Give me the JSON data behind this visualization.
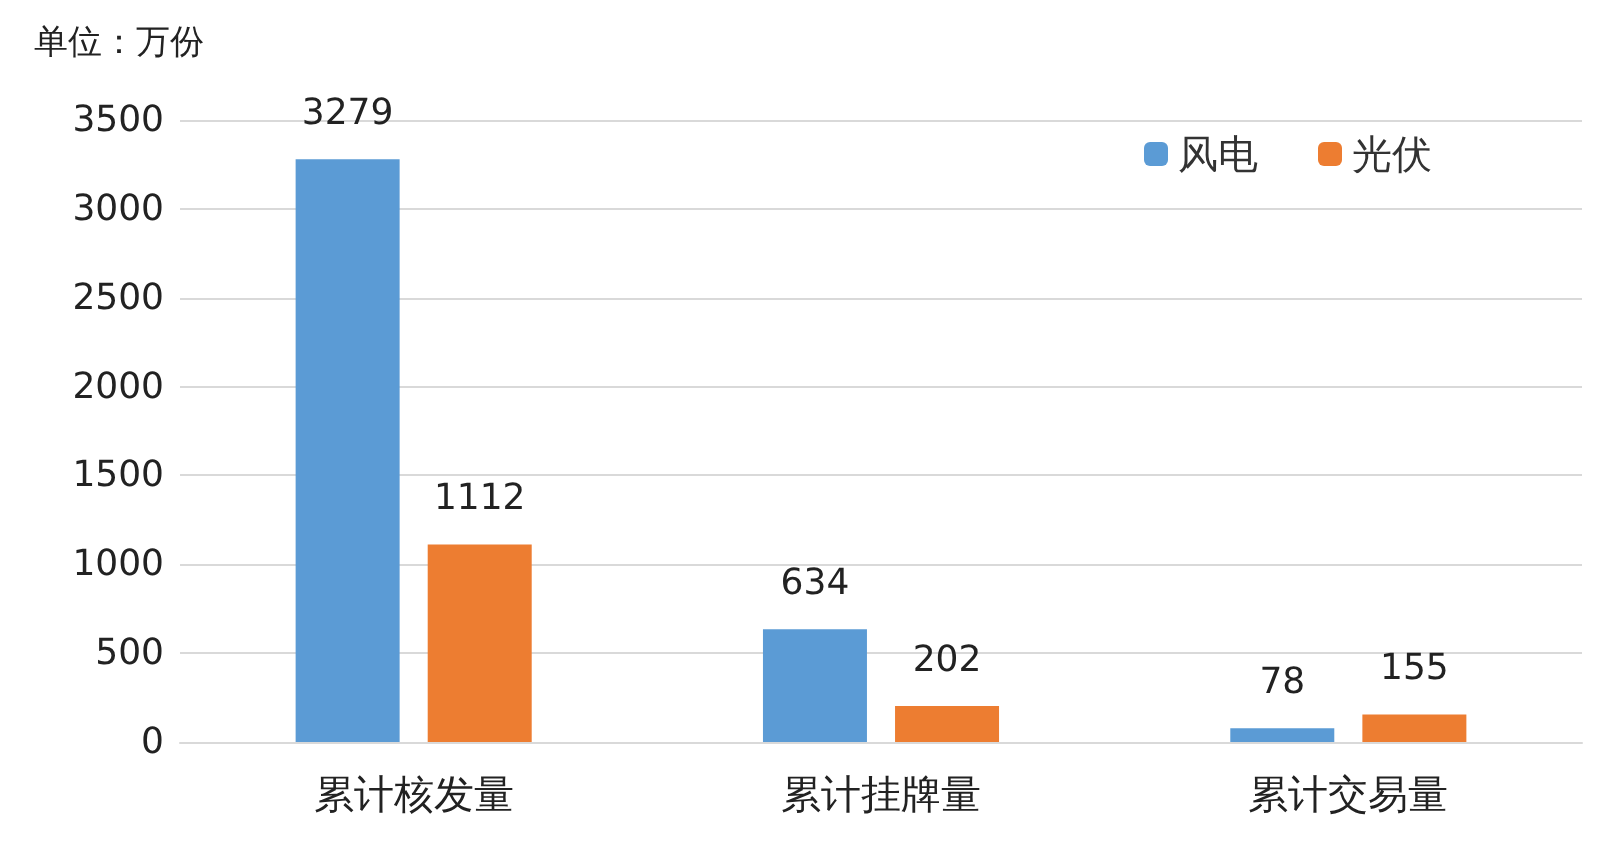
{
  "chart_data": {
    "type": "bar",
    "ylabel": "单位：万份",
    "categories": [
      "累计核发量",
      "累计挂牌量",
      "累计交易量"
    ],
    "series": [
      {
        "name": "风电",
        "color": "#5b9bd5",
        "values": [
          3279,
          634,
          78
        ]
      },
      {
        "name": "光伏",
        "color": "#ed7d31",
        "values": [
          1112,
          202,
          155
        ]
      }
    ],
    "ylim": [
      0,
      3500
    ],
    "yticks": [
      0,
      500,
      1000,
      1500,
      2000,
      2500,
      3000,
      3500
    ],
    "grid": "y",
    "legend": "top right",
    "data_labels": true
  }
}
